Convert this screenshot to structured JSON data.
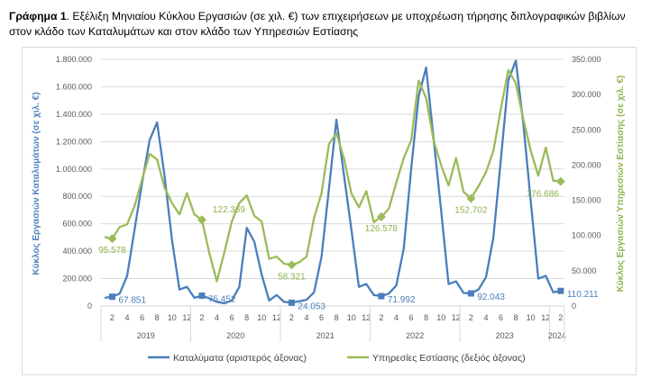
{
  "caption": {
    "prefix": "Γράφημα 1",
    "text": ". Εξέλιξη Μηνιαίου Κύκλου Εργασιών (σε χιλ. €) των επιχειρήσεων με υποχρέωση τήρησης διπλογραφικών βιβλίων στον κλάδο των Καταλυμάτων και στον κλάδο των Υπηρεσιών Εστίασης"
  },
  "chart_data": {
    "type": "line",
    "ylabel_left": "Κύκλος Εργασιών Καταλυμάτων (σε χιλ. €)",
    "ylabel_right": "Κύκλος Εργασιών Υπηρεσιών Εστίασης (σε χιλ. €)",
    "ylim_left": [
      0,
      1800000
    ],
    "ylim_right": [
      0,
      350000
    ],
    "yticks_left": [
      "0",
      "200.000",
      "400.000",
      "600.000",
      "800.000",
      "1.000.000",
      "1.200.000",
      "1.400.000",
      "1.600.000",
      "1.800.000"
    ],
    "yticks_right": [
      "0",
      "50.000",
      "100.000",
      "150.000",
      "200.000",
      "250.000",
      "300.000",
      "350.000"
    ],
    "month_ticks": [
      "2",
      "4",
      "6",
      "8",
      "10",
      "12"
    ],
    "years": [
      "2019",
      "2020",
      "2021",
      "2022",
      "2023",
      "2024"
    ],
    "grid": true,
    "legend_position": "bottom",
    "colors": {
      "left_series": "#4a7ebb",
      "right_series": "#9bbb59"
    },
    "series": [
      {
        "name": "Καταλύματα (αριστερός άξονας)",
        "axis": "left",
        "values": [
          60000,
          67851,
          90000,
          220000,
          560000,
          900000,
          1210000,
          1340000,
          950000,
          480000,
          120000,
          140000,
          60000,
          75452,
          55000,
          30000,
          20000,
          40000,
          140000,
          570000,
          470000,
          230000,
          40000,
          80000,
          30000,
          24053,
          35000,
          45000,
          100000,
          360000,
          860000,
          1360000,
          960000,
          560000,
          140000,
          160000,
          80000,
          71992,
          90000,
          150000,
          420000,
          1000000,
          1530000,
          1740000,
          1220000,
          700000,
          160000,
          180000,
          95000,
          92043,
          120000,
          210000,
          500000,
          1070000,
          1650000,
          1790000,
          1330000,
          760000,
          200000,
          220000,
          100000,
          110211
        ]
      },
      {
        "name": "Υπηρεσίες Εστίασης (δεξιός άξονας)",
        "axis": "right",
        "values": [
          98000,
          95578,
          112000,
          116000,
          142000,
          180000,
          216000,
          208000,
          168000,
          146000,
          130000,
          160000,
          130000,
          122369,
          75000,
          35000,
          76000,
          120000,
          146000,
          157000,
          128000,
          120000,
          67000,
          70000,
          60000,
          58321,
          62000,
          70000,
          125000,
          160000,
          230000,
          245000,
          210000,
          160000,
          140000,
          163000,
          119000,
          126578,
          138000,
          175000,
          210000,
          235000,
          320000,
          295000,
          235000,
          200000,
          171000,
          210000,
          162000,
          152702,
          170000,
          190000,
          220000,
          280000,
          335000,
          316000,
          265000,
          220000,
          185000,
          225000,
          178000,
          176686
        ]
      }
    ],
    "data_labels_left": [
      {
        "month_index": 1,
        "text": "67.851"
      },
      {
        "month_index": 13,
        "text": "75.452"
      },
      {
        "month_index": 25,
        "text": "24.053"
      },
      {
        "month_index": 37,
        "text": "71.992"
      },
      {
        "month_index": 49,
        "text": "92.043"
      },
      {
        "month_index": 61,
        "text": "110.211"
      }
    ],
    "data_labels_right": [
      {
        "month_index": 1,
        "text": "95.578"
      },
      {
        "month_index": 13,
        "text": "122.369"
      },
      {
        "month_index": 25,
        "text": "58.321"
      },
      {
        "month_index": 37,
        "text": "126.578"
      },
      {
        "month_index": 49,
        "text": "152.702"
      },
      {
        "month_index": 61,
        "text": "176.686"
      }
    ]
  }
}
